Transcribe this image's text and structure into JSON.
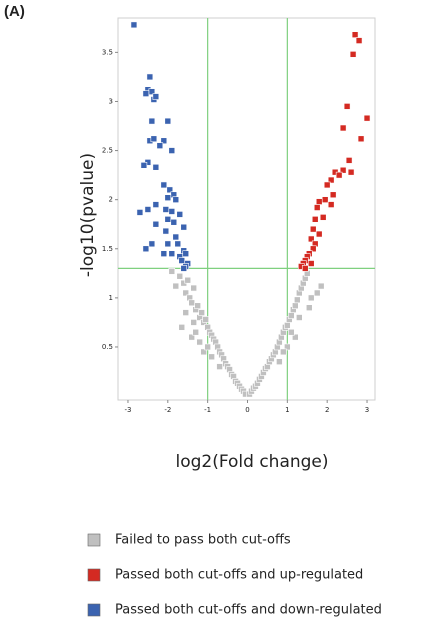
{
  "chart_data": {
    "type": "scatter",
    "panel_label": "(A)",
    "xlabel": "log2(Fold change)",
    "ylabel": "-log10(pvalue)",
    "xlim": [
      -3.25,
      3.2
    ],
    "ylim": [
      -0.04,
      3.85
    ],
    "xticks": [
      -3,
      -2,
      -1,
      0,
      1,
      2,
      3
    ],
    "yticks": [
      0.5,
      1,
      1.5,
      2,
      2.5,
      3,
      3.5
    ],
    "vlines": [
      -1,
      1
    ],
    "hlines": [
      1.3
    ],
    "cutoff_color": "#7fd07f",
    "legend": "bottom",
    "series": [
      {
        "name": "Failed to pass both cut-offs",
        "color": "#c0c0c0",
        "x": [
          -1.7,
          -1.6,
          -1.55,
          -1.5,
          -1.45,
          -1.4,
          -1.35,
          -1.3,
          -1.25,
          -1.2,
          -1.15,
          -1.1,
          -1.05,
          -1.0,
          -0.95,
          -0.9,
          -0.85,
          -0.8,
          -0.75,
          -0.7,
          -0.65,
          -0.6,
          -0.55,
          -0.5,
          -0.45,
          -0.4,
          -0.35,
          -0.3,
          -0.25,
          -0.2,
          -0.15,
          -0.1,
          -0.05,
          -1.65,
          -1.4,
          -1.2,
          -1.3,
          -1.9,
          -1.8,
          -1.1,
          -0.9,
          -0.7,
          -1.55,
          -1.35,
          -1.0,
          0.05,
          0.1,
          0.15,
          0.2,
          0.25,
          0.3,
          0.35,
          0.4,
          0.45,
          0.5,
          0.55,
          0.6,
          0.65,
          0.7,
          0.75,
          0.8,
          0.85,
          0.9,
          0.95,
          1.0,
          1.05,
          1.1,
          1.15,
          1.2,
          1.25,
          1.3,
          1.35,
          1.4,
          1.45,
          1.5,
          1.2,
          1.0,
          0.8,
          1.6,
          1.75,
          1.85,
          1.55,
          1.3,
          1.1,
          0.9
        ],
        "y": [
          1.22,
          1.15,
          1.05,
          1.18,
          1.0,
          0.95,
          1.1,
          0.88,
          0.92,
          0.8,
          0.85,
          0.75,
          0.78,
          0.7,
          0.65,
          0.62,
          0.58,
          0.55,
          0.5,
          0.45,
          0.42,
          0.38,
          0.33,
          0.3,
          0.27,
          0.22,
          0.2,
          0.15,
          0.13,
          0.1,
          0.07,
          0.05,
          0.02,
          0.7,
          0.6,
          0.55,
          0.65,
          1.27,
          1.12,
          0.45,
          0.4,
          0.3,
          0.85,
          0.75,
          0.5,
          0.02,
          0.05,
          0.08,
          0.1,
          0.13,
          0.17,
          0.2,
          0.24,
          0.28,
          0.3,
          0.35,
          0.38,
          0.42,
          0.45,
          0.5,
          0.55,
          0.6,
          0.65,
          0.7,
          0.72,
          0.78,
          0.82,
          0.88,
          0.92,
          0.98,
          1.05,
          1.1,
          1.15,
          1.2,
          1.25,
          0.6,
          0.5,
          0.35,
          1.0,
          1.05,
          1.12,
          0.9,
          0.8,
          0.65,
          0.45
        ]
      },
      {
        "name": "Passed both cut-offs and up-regulated",
        "color": "#d42a22",
        "x": [
          2.7,
          2.8,
          2.65,
          3.0,
          2.5,
          2.4,
          2.85,
          2.55,
          2.4,
          2.6,
          2.2,
          2.3,
          2.1,
          2.0,
          2.15,
          1.95,
          1.8,
          1.75,
          2.1,
          1.9,
          1.7,
          1.65,
          1.8,
          1.6,
          1.7,
          1.65,
          1.55,
          1.5,
          1.45,
          1.4,
          1.35,
          1.6,
          1.45
        ],
        "y": [
          3.68,
          3.62,
          3.48,
          2.83,
          2.95,
          2.73,
          2.62,
          2.4,
          2.3,
          2.28,
          2.28,
          2.25,
          2.2,
          2.15,
          2.05,
          2.0,
          1.98,
          1.92,
          1.95,
          1.82,
          1.8,
          1.7,
          1.65,
          1.6,
          1.55,
          1.5,
          1.45,
          1.42,
          1.38,
          1.35,
          1.32,
          1.35,
          1.3
        ]
      },
      {
        "name": "Passed both cut-offs and down-regulated",
        "color": "#3b63b0",
        "x": [
          -2.85,
          -2.45,
          -2.5,
          -2.4,
          -2.55,
          -2.35,
          -2.3,
          -2.4,
          -2.45,
          -2.35,
          -2.0,
          -2.1,
          -2.2,
          -1.9,
          -2.5,
          -2.3,
          -2.6,
          -2.1,
          -1.95,
          -1.85,
          -2.0,
          -1.8,
          -2.5,
          -2.3,
          -2.05,
          -1.9,
          -1.7,
          -2.7,
          -2.0,
          -1.85,
          -2.3,
          -1.6,
          -2.05,
          -1.8,
          -2.0,
          -1.75,
          -2.4,
          -1.6,
          -2.55,
          -2.1,
          -1.9,
          -1.7,
          -1.55,
          -1.65,
          -1.5,
          -1.55,
          -1.6
        ],
        "y": [
          3.78,
          3.25,
          3.12,
          3.1,
          3.08,
          3.02,
          3.05,
          2.8,
          2.6,
          2.62,
          2.8,
          2.6,
          2.55,
          2.5,
          2.38,
          2.33,
          2.35,
          2.15,
          2.1,
          2.05,
          2.02,
          2.0,
          1.9,
          1.95,
          1.9,
          1.88,
          1.85,
          1.87,
          1.8,
          1.77,
          1.75,
          1.72,
          1.68,
          1.62,
          1.55,
          1.55,
          1.55,
          1.48,
          1.5,
          1.45,
          1.45,
          1.42,
          1.45,
          1.38,
          1.35,
          1.32,
          1.3
        ]
      }
    ]
  }
}
